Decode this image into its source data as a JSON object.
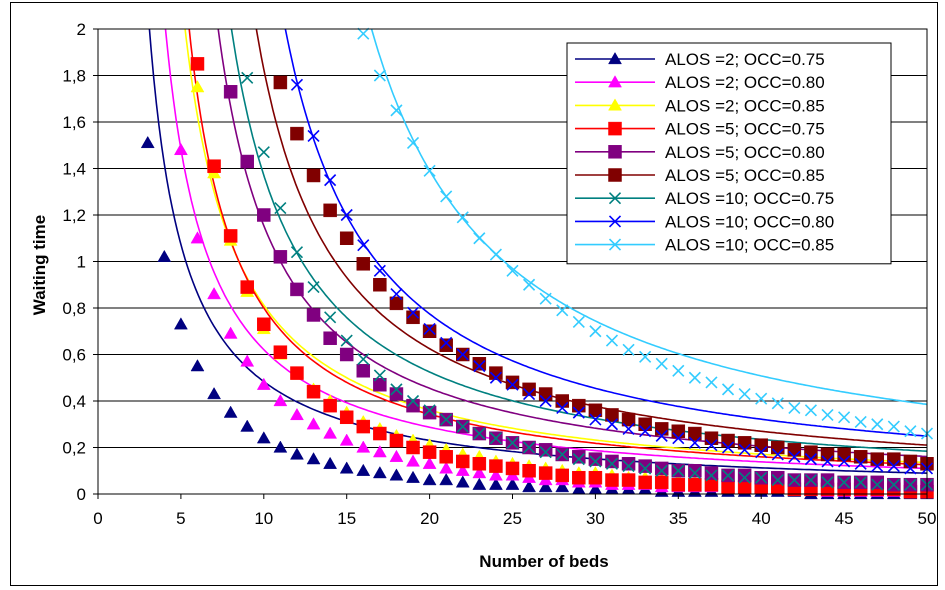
{
  "chart_data": {
    "type": "line",
    "title": "",
    "xlabel": "Number of beds",
    "ylabel": "Waiting time",
    "xlim": [
      0,
      50
    ],
    "ylim": [
      0,
      2
    ],
    "x_ticks": [
      "0",
      "5",
      "10",
      "15",
      "20",
      "25",
      "30",
      "35",
      "40",
      "45",
      "50"
    ],
    "y_ticks": [
      "0",
      "0,2",
      "0,4",
      "0,6",
      "0,8",
      "1",
      "1,2",
      "1,4",
      "1,6",
      "1,8",
      "2"
    ],
    "grid": "horizontal",
    "legend_position": "top-right",
    "series": [
      {
        "name": "ALOS =2;  OCC=0.75",
        "color": "#000080",
        "marker": "triangle",
        "curve_a": 4.4,
        "curve_b": 0.9,
        "x": [
          3,
          4,
          5,
          6,
          7,
          8,
          9,
          10,
          11,
          12,
          13,
          14,
          15,
          16,
          17,
          18,
          19,
          20,
          21,
          22,
          23,
          24,
          25,
          26,
          27,
          28,
          29,
          30,
          31,
          32,
          33,
          34,
          35,
          36,
          37,
          38,
          39,
          40,
          41,
          42,
          43,
          44,
          45,
          46,
          47,
          48,
          49,
          50
        ],
        "values": [
          1.51,
          1.02,
          0.73,
          0.55,
          0.43,
          0.35,
          0.29,
          0.24,
          0.2,
          0.17,
          0.15,
          0.13,
          0.11,
          0.1,
          0.09,
          0.08,
          0.07,
          0.06,
          0.06,
          0.05,
          0.04,
          0.04,
          0.04,
          0.03,
          0.03,
          0.03,
          0.02,
          0.02,
          0.02,
          0.02,
          0.02,
          0.01,
          0.01,
          0.01,
          0.01,
          0.01,
          0.01,
          0.01,
          0.01,
          0.01,
          0.0,
          0.0,
          0.0,
          0.0,
          0.0,
          0.0,
          0.0,
          0.0
        ]
      },
      {
        "name": "ALOS =2;  OCC=0.80",
        "color": "#ff00ff",
        "marker": "triangle",
        "curve_a": 5.34,
        "curve_b": 1.4,
        "x": [
          5,
          6,
          7,
          8,
          9,
          10,
          11,
          12,
          13,
          14,
          15,
          16,
          17,
          18,
          19,
          20,
          21,
          22,
          23,
          24,
          25,
          26,
          27,
          28,
          29,
          30,
          31,
          32,
          33,
          34,
          35,
          36,
          37,
          38,
          39,
          40,
          41,
          42,
          43,
          44,
          45,
          46,
          47,
          48,
          49,
          50
        ],
        "values": [
          1.48,
          1.1,
          0.86,
          0.69,
          0.57,
          0.47,
          0.4,
          0.34,
          0.3,
          0.26,
          0.23,
          0.2,
          0.18,
          0.16,
          0.14,
          0.13,
          0.11,
          0.1,
          0.09,
          0.08,
          0.08,
          0.07,
          0.06,
          0.06,
          0.05,
          0.05,
          0.04,
          0.04,
          0.04,
          0.03,
          0.03,
          0.03,
          0.03,
          0.02,
          0.02,
          0.02,
          0.02,
          0.02,
          0.02,
          0.01,
          0.01,
          0.01,
          0.01,
          0.01,
          0.01,
          0.01
        ]
      },
      {
        "name": "ALOS =2;  OCC=0.85",
        "color": "#ffff00",
        "marker": "triangle",
        "curve_a": 6.5,
        "curve_b": 2.0,
        "x": [
          6,
          7,
          8,
          9,
          10,
          11,
          12,
          13,
          14,
          15,
          16,
          17,
          18,
          19,
          20,
          21,
          22,
          23,
          24,
          25,
          26,
          27,
          28,
          29,
          30,
          31,
          32,
          33,
          34,
          35,
          36,
          37,
          38,
          39,
          40,
          41,
          42,
          43,
          44,
          45,
          46,
          47,
          48,
          49,
          50
        ],
        "values": [
          1.75,
          1.38,
          1.09,
          0.87,
          0.71,
          0.6,
          0.52,
          0.45,
          0.4,
          0.35,
          0.31,
          0.28,
          0.25,
          0.23,
          0.21,
          0.19,
          0.17,
          0.16,
          0.14,
          0.13,
          0.12,
          0.11,
          0.1,
          0.09,
          0.09,
          0.08,
          0.07,
          0.07,
          0.06,
          0.06,
          0.05,
          0.05,
          0.05,
          0.04,
          0.04,
          0.04,
          0.04,
          0.03,
          0.03,
          0.03,
          0.03,
          0.03,
          0.02,
          0.02,
          0.02
        ]
      },
      {
        "name": "ALOS =5;  OCC=0.75",
        "color": "#ff0000",
        "marker": "square",
        "curve_a": 6.0,
        "curve_b": 2.5,
        "x": [
          6,
          7,
          8,
          9,
          10,
          11,
          12,
          13,
          14,
          15,
          16,
          17,
          18,
          19,
          20,
          21,
          22,
          23,
          24,
          25,
          26,
          27,
          28,
          29,
          30,
          31,
          32,
          33,
          34,
          35,
          36,
          37,
          38,
          39,
          40,
          41,
          42,
          43,
          44,
          45,
          46,
          47,
          48,
          49,
          50
        ],
        "values": [
          1.85,
          1.41,
          1.11,
          0.89,
          0.73,
          0.61,
          0.52,
          0.44,
          0.38,
          0.33,
          0.29,
          0.26,
          0.23,
          0.2,
          0.18,
          0.16,
          0.14,
          0.13,
          0.12,
          0.11,
          0.1,
          0.09,
          0.08,
          0.07,
          0.07,
          0.06,
          0.06,
          0.05,
          0.05,
          0.04,
          0.04,
          0.04,
          0.03,
          0.03,
          0.03,
          0.03,
          0.02,
          0.02,
          0.02,
          0.02,
          0.02,
          0.02,
          0.02,
          0.01,
          0.01
        ]
      },
      {
        "name": "ALOS =5;  OCC=0.80",
        "color": "#800080",
        "marker": "square",
        "curve_a": 7.5,
        "curve_b": 3.5,
        "x": [
          8,
          9,
          10,
          11,
          12,
          13,
          14,
          15,
          16,
          17,
          18,
          19,
          20,
          21,
          22,
          23,
          24,
          25,
          26,
          27,
          28,
          29,
          30,
          31,
          32,
          33,
          34,
          35,
          36,
          37,
          38,
          39,
          40,
          41,
          42,
          43,
          44,
          45,
          46,
          47,
          48,
          49,
          50
        ],
        "values": [
          1.73,
          1.43,
          1.2,
          1.02,
          0.88,
          0.77,
          0.67,
          0.6,
          0.53,
          0.47,
          0.43,
          0.38,
          0.35,
          0.32,
          0.29,
          0.26,
          0.24,
          0.22,
          0.2,
          0.19,
          0.17,
          0.16,
          0.15,
          0.14,
          0.13,
          0.12,
          0.11,
          0.1,
          0.1,
          0.09,
          0.08,
          0.08,
          0.07,
          0.07,
          0.06,
          0.06,
          0.06,
          0.05,
          0.05,
          0.05,
          0.04,
          0.04,
          0.04
        ]
      },
      {
        "name": "ALOS =5;  OCC=0.85",
        "color": "#800000",
        "marker": "square",
        "curve_a": 9.5,
        "curve_b": 4.8,
        "x": [
          11,
          12,
          13,
          14,
          15,
          16,
          17,
          18,
          19,
          20,
          21,
          22,
          23,
          24,
          25,
          26,
          27,
          28,
          29,
          30,
          31,
          32,
          33,
          34,
          35,
          36,
          37,
          38,
          39,
          40,
          41,
          42,
          43,
          44,
          45,
          46,
          47,
          48,
          49,
          50
        ],
        "values": [
          1.77,
          1.55,
          1.37,
          1.22,
          1.1,
          0.99,
          0.9,
          0.82,
          0.76,
          0.7,
          0.64,
          0.6,
          0.56,
          0.52,
          0.48,
          0.45,
          0.43,
          0.4,
          0.38,
          0.36,
          0.34,
          0.32,
          0.3,
          0.28,
          0.27,
          0.26,
          0.24,
          0.23,
          0.22,
          0.21,
          0.2,
          0.19,
          0.18,
          0.17,
          0.17,
          0.16,
          0.15,
          0.15,
          0.14,
          0.13
        ]
      },
      {
        "name": "ALOS =10;  OCC=0.75",
        "color": "#008080",
        "marker": "x",
        "curve_a": 8.5,
        "curve_b": 3.8,
        "x": [
          9,
          10,
          11,
          12,
          13,
          14,
          15,
          16,
          17,
          18,
          19,
          20,
          21,
          22,
          23,
          24,
          25,
          26,
          27,
          28,
          29,
          30,
          31,
          32,
          33,
          34,
          35,
          36,
          37,
          38,
          39,
          40,
          41,
          42,
          43,
          44,
          45,
          46,
          47,
          48,
          49,
          50
        ],
        "values": [
          1.79,
          1.47,
          1.23,
          1.04,
          0.89,
          0.76,
          0.66,
          0.58,
          0.51,
          0.45,
          0.4,
          0.36,
          0.32,
          0.29,
          0.26,
          0.24,
          0.22,
          0.2,
          0.18,
          0.17,
          0.15,
          0.14,
          0.13,
          0.12,
          0.11,
          0.1,
          0.1,
          0.09,
          0.08,
          0.08,
          0.07,
          0.07,
          0.06,
          0.06,
          0.06,
          0.05,
          0.05,
          0.05,
          0.04,
          0.04,
          0.04,
          0.04
        ]
      },
      {
        "name": "ALOS =10;  OCC=0.80",
        "color": "#0000ff",
        "marker": "x",
        "curve_a": 11.0,
        "curve_b": 5.8,
        "x": [
          12,
          13,
          14,
          15,
          16,
          17,
          18,
          19,
          20,
          21,
          22,
          23,
          24,
          25,
          26,
          27,
          28,
          29,
          30,
          31,
          32,
          33,
          34,
          35,
          36,
          37,
          38,
          39,
          40,
          41,
          42,
          43,
          44,
          45,
          46,
          47,
          48,
          49,
          50
        ],
        "values": [
          1.76,
          1.54,
          1.35,
          1.2,
          1.07,
          0.96,
          0.86,
          0.78,
          0.71,
          0.65,
          0.6,
          0.55,
          0.5,
          0.47,
          0.43,
          0.4,
          0.37,
          0.35,
          0.32,
          0.3,
          0.28,
          0.27,
          0.25,
          0.24,
          0.22,
          0.21,
          0.2,
          0.19,
          0.18,
          0.17,
          0.16,
          0.15,
          0.14,
          0.14,
          0.13,
          0.12,
          0.12,
          0.11,
          0.11
        ]
      },
      {
        "name": "ALOS =10;  OCC=0.85",
        "color": "#33ccff",
        "marker": "x",
        "curve_a": 16.0,
        "curve_b": 8.5,
        "x": [
          16,
          17,
          18,
          19,
          20,
          21,
          22,
          23,
          24,
          25,
          26,
          27,
          28,
          29,
          30,
          31,
          32,
          33,
          34,
          35,
          36,
          37,
          38,
          39,
          40,
          41,
          42,
          43,
          44,
          45,
          46,
          47,
          48,
          49,
          50
        ],
        "values": [
          1.98,
          1.8,
          1.65,
          1.51,
          1.39,
          1.28,
          1.19,
          1.1,
          1.03,
          0.96,
          0.9,
          0.84,
          0.79,
          0.74,
          0.7,
          0.66,
          0.62,
          0.59,
          0.56,
          0.53,
          0.5,
          0.48,
          0.45,
          0.43,
          0.41,
          0.39,
          0.37,
          0.36,
          0.34,
          0.33,
          0.31,
          0.3,
          0.29,
          0.27,
          0.26
        ]
      }
    ]
  }
}
